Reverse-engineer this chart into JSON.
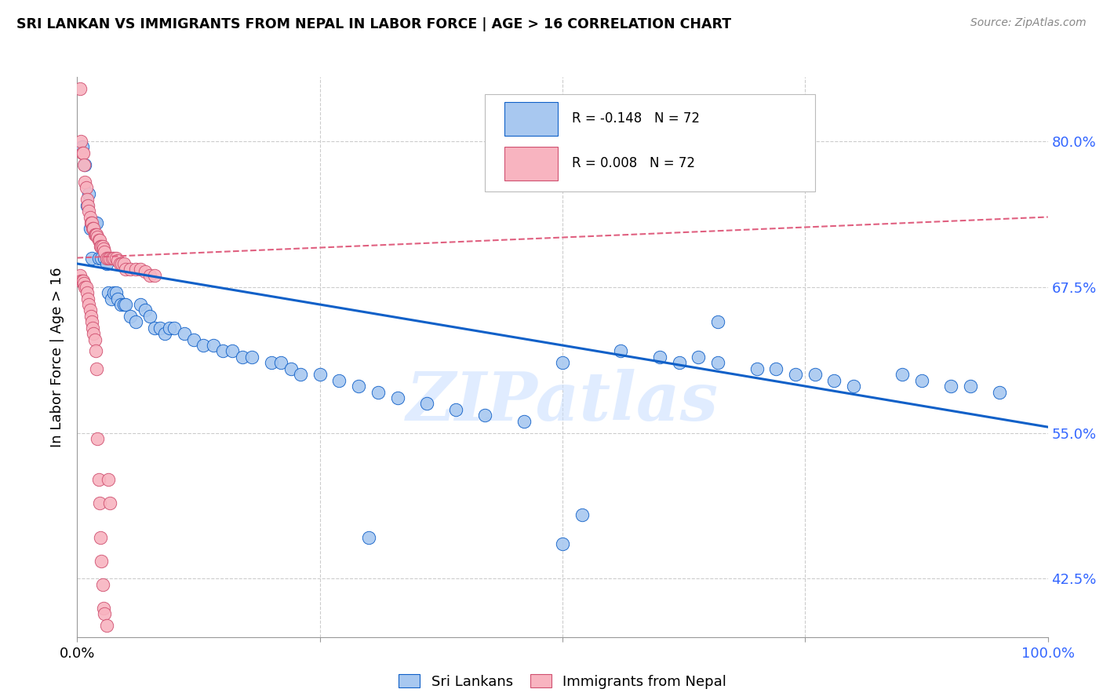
{
  "title": "SRI LANKAN VS IMMIGRANTS FROM NEPAL IN LABOR FORCE | AGE > 16 CORRELATION CHART",
  "source": "Source: ZipAtlas.com",
  "ylabel": "In Labor Force | Age > 16",
  "xlim": [
    0.0,
    1.0
  ],
  "ylim": [
    0.375,
    0.855
  ],
  "yticks": [
    0.425,
    0.55,
    0.675,
    0.8
  ],
  "ytick_labels": [
    "42.5%",
    "55.0%",
    "67.5%",
    "80.0%"
  ],
  "R_sri": -0.148,
  "N_sri": 72,
  "R_nepal": 0.008,
  "N_nepal": 72,
  "color_sri": "#A8C8F0",
  "color_nepal": "#F8B4C0",
  "line_color_sri": "#1060C8",
  "line_color_nepal": "#E06080",
  "background_color": "#FFFFFF",
  "grid_color": "#CCCCCC",
  "watermark": "ZIPatlas",
  "sri_line_y0": 0.695,
  "sri_line_y1": 0.555,
  "nepal_line_y0": 0.7,
  "nepal_line_y1": 0.735,
  "sri_x": [
    0.005,
    0.008,
    0.01,
    0.012,
    0.013,
    0.015,
    0.018,
    0.02,
    0.022,
    0.025,
    0.028,
    0.03,
    0.032,
    0.035,
    0.038,
    0.04,
    0.042,
    0.045,
    0.048,
    0.05,
    0.055,
    0.06,
    0.065,
    0.07,
    0.075,
    0.08,
    0.085,
    0.09,
    0.095,
    0.1,
    0.11,
    0.12,
    0.13,
    0.14,
    0.15,
    0.16,
    0.17,
    0.18,
    0.2,
    0.21,
    0.22,
    0.23,
    0.25,
    0.27,
    0.29,
    0.31,
    0.33,
    0.36,
    0.39,
    0.42,
    0.46,
    0.5,
    0.52,
    0.56,
    0.6,
    0.62,
    0.64,
    0.66,
    0.7,
    0.72,
    0.74,
    0.76,
    0.78,
    0.8,
    0.85,
    0.87,
    0.9,
    0.92,
    0.95,
    0.3,
    0.5,
    0.66
  ],
  "sri_y": [
    0.795,
    0.78,
    0.745,
    0.755,
    0.725,
    0.7,
    0.73,
    0.73,
    0.7,
    0.7,
    0.7,
    0.695,
    0.67,
    0.665,
    0.67,
    0.67,
    0.665,
    0.66,
    0.66,
    0.66,
    0.65,
    0.645,
    0.66,
    0.655,
    0.65,
    0.64,
    0.64,
    0.635,
    0.64,
    0.64,
    0.635,
    0.63,
    0.625,
    0.625,
    0.62,
    0.62,
    0.615,
    0.615,
    0.61,
    0.61,
    0.605,
    0.6,
    0.6,
    0.595,
    0.59,
    0.585,
    0.58,
    0.575,
    0.57,
    0.565,
    0.56,
    0.61,
    0.48,
    0.62,
    0.615,
    0.61,
    0.615,
    0.61,
    0.605,
    0.605,
    0.6,
    0.6,
    0.595,
    0.59,
    0.6,
    0.595,
    0.59,
    0.59,
    0.585,
    0.46,
    0.455,
    0.645
  ],
  "nepal_x": [
    0.003,
    0.004,
    0.005,
    0.006,
    0.007,
    0.008,
    0.009,
    0.01,
    0.011,
    0.012,
    0.013,
    0.014,
    0.015,
    0.016,
    0.017,
    0.018,
    0.019,
    0.02,
    0.021,
    0.022,
    0.023,
    0.024,
    0.025,
    0.026,
    0.027,
    0.028,
    0.03,
    0.032,
    0.034,
    0.036,
    0.038,
    0.04,
    0.042,
    0.044,
    0.046,
    0.048,
    0.05,
    0.055,
    0.06,
    0.065,
    0.07,
    0.075,
    0.08,
    0.003,
    0.004,
    0.005,
    0.006,
    0.007,
    0.008,
    0.009,
    0.01,
    0.011,
    0.012,
    0.013,
    0.014,
    0.015,
    0.016,
    0.017,
    0.018,
    0.019,
    0.02,
    0.021,
    0.022,
    0.023,
    0.024,
    0.025,
    0.026,
    0.027,
    0.028,
    0.03,
    0.032,
    0.034
  ],
  "nepal_y": [
    0.845,
    0.8,
    0.79,
    0.79,
    0.78,
    0.765,
    0.76,
    0.75,
    0.745,
    0.74,
    0.735,
    0.73,
    0.73,
    0.725,
    0.725,
    0.72,
    0.72,
    0.72,
    0.718,
    0.715,
    0.715,
    0.71,
    0.71,
    0.71,
    0.708,
    0.705,
    0.7,
    0.7,
    0.7,
    0.7,
    0.7,
    0.7,
    0.698,
    0.695,
    0.695,
    0.695,
    0.69,
    0.69,
    0.69,
    0.69,
    0.688,
    0.685,
    0.685,
    0.685,
    0.68,
    0.68,
    0.68,
    0.678,
    0.675,
    0.675,
    0.67,
    0.665,
    0.66,
    0.655,
    0.65,
    0.645,
    0.64,
    0.635,
    0.63,
    0.62,
    0.605,
    0.545,
    0.51,
    0.49,
    0.46,
    0.44,
    0.42,
    0.4,
    0.395,
    0.385,
    0.51,
    0.49
  ]
}
